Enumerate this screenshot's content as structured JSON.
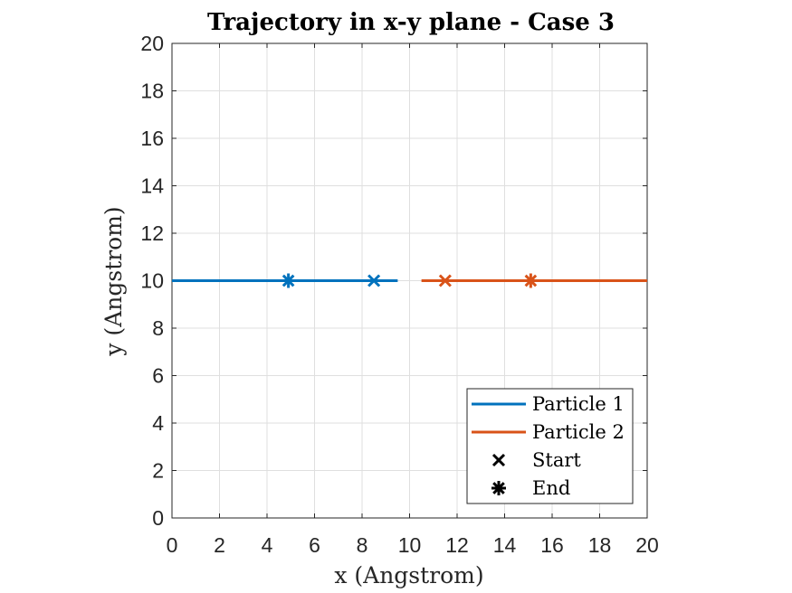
{
  "chart_data": {
    "type": "line",
    "title": "Trajectory in x-y plane - Case 3",
    "xlabel": "x (Angstrom)",
    "ylabel": "y (Angstrom)",
    "xlim": [
      0,
      20
    ],
    "ylim": [
      0,
      20
    ],
    "xticks": [
      0,
      2,
      4,
      6,
      8,
      10,
      12,
      14,
      16,
      18,
      20
    ],
    "yticks": [
      0,
      2,
      4,
      6,
      8,
      10,
      12,
      14,
      16,
      18,
      20
    ],
    "grid": true,
    "legend_position": "bottom-right",
    "series": [
      {
        "name": "Particle 1",
        "color": "#0072BD",
        "x": [
          0,
          9.5
        ],
        "y": [
          10,
          10
        ],
        "start": [
          8.5,
          10
        ],
        "end": [
          4.9,
          10
        ]
      },
      {
        "name": "Particle 2",
        "color": "#D95319",
        "x": [
          10.5,
          20
        ],
        "y": [
          10,
          10
        ],
        "start": [
          11.5,
          10
        ],
        "end": [
          15.1,
          10
        ]
      }
    ],
    "marker_legend": [
      {
        "label": "Start",
        "marker": "x-mark"
      },
      {
        "label": "End",
        "marker": "asterisk"
      }
    ]
  }
}
